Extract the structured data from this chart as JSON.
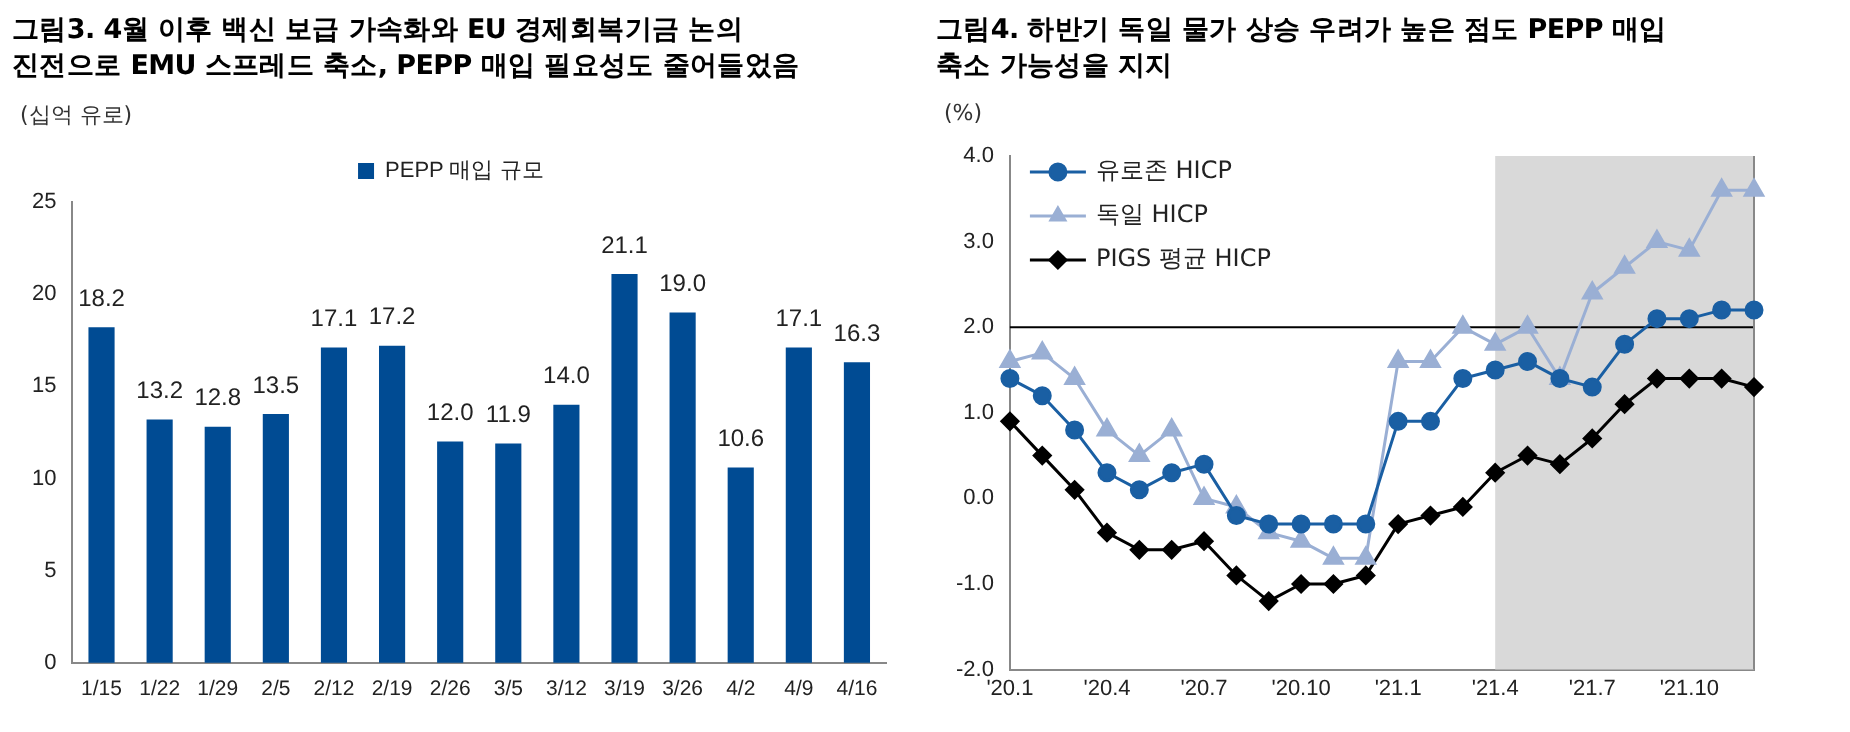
{
  "chart_data": [
    {
      "type": "bar",
      "title": "그림3. 4월 이후 백신 보급 가속화와 EU 경제회복기금 논의\n진전으로 EMU 스프레드 축소, PEPP 매입 필요성도 줄어들었음",
      "ylabel": "(십억 유로)",
      "categories": [
        "1/15",
        "1/22",
        "1/29",
        "2/5",
        "2/12",
        "2/19",
        "2/26",
        "3/5",
        "3/12",
        "3/19",
        "3/26",
        "4/2",
        "4/9",
        "4/16"
      ],
      "series": [
        {
          "name": "PEPP 매입 규모",
          "color": "#004b93",
          "values": [
            18.2,
            13.2,
            12.8,
            13.5,
            17.1,
            17.2,
            12.0,
            11.9,
            14.0,
            21.1,
            19.0,
            10.6,
            17.1,
            16.3
          ]
        }
      ],
      "value_labels": [
        "18.2",
        "13.2",
        "12.8",
        "13.5",
        "17.1",
        "17.2",
        "12.0",
        "11.9",
        "14.0",
        "21.1",
        "19.0",
        "10.6",
        "17.1",
        "16.3"
      ],
      "ylim": [
        0,
        25
      ],
      "yticks": [
        0,
        5,
        10,
        15,
        20,
        25
      ],
      "grid": false,
      "legend": "top"
    },
    {
      "type": "line",
      "title": "그림4. 하반기 독일 물가 상승 우려가 높은 점도 PEPP 매입\n축소 가능성을 지지",
      "ylabel": "(%)",
      "x": [
        "2020-01",
        "2020-02",
        "2020-03",
        "2020-04",
        "2020-05",
        "2020-06",
        "2020-07",
        "2020-08",
        "2020-09",
        "2020-10",
        "2020-11",
        "2020-12",
        "2021-01",
        "2021-02",
        "2021-03",
        "2021-04",
        "2021-05",
        "2021-06",
        "2021-07",
        "2021-08",
        "2021-09",
        "2021-10",
        "2021-11",
        "2021-12"
      ],
      "series": [
        {
          "name": "유로존 HICP",
          "color": "#1a5fa3",
          "marker": "circle",
          "values": [
            1.4,
            1.2,
            0.8,
            0.3,
            0.1,
            0.3,
            0.4,
            -0.2,
            -0.3,
            -0.3,
            -0.3,
            -0.3,
            0.9,
            0.9,
            1.4,
            1.5,
            1.6,
            1.4,
            1.3,
            1.8,
            2.1,
            2.1,
            2.2,
            2.2
          ]
        },
        {
          "name": "독일 HICP",
          "color": "#9aafd4",
          "marker": "triangle",
          "values": [
            1.6,
            1.7,
            1.4,
            0.8,
            0.5,
            0.8,
            0.0,
            -0.1,
            -0.4,
            -0.5,
            -0.7,
            -0.7,
            1.6,
            1.6,
            2.0,
            1.8,
            2.0,
            1.4,
            2.4,
            2.7,
            3.0,
            2.9,
            3.6,
            3.6
          ]
        },
        {
          "name": "PIGS 평균 HICP",
          "color": "#000000",
          "marker": "diamond",
          "values": [
            0.9,
            0.5,
            0.1,
            -0.4,
            -0.6,
            -0.6,
            -0.5,
            -0.9,
            -1.2,
            -1.0,
            -1.0,
            -0.9,
            -0.3,
            -0.2,
            -0.1,
            0.3,
            0.5,
            0.4,
            0.7,
            1.1,
            1.4,
            1.4,
            1.4,
            1.3
          ]
        }
      ],
      "xlim": [
        "2020-01",
        "2021-12"
      ],
      "xticks": [
        {
          "value": "2020-01",
          "label": "'20.1"
        },
        {
          "value": "2020-04",
          "label": "'20.4"
        },
        {
          "value": "2020-07",
          "label": "'20.7"
        },
        {
          "value": "2020-10",
          "label": "'20.10"
        },
        {
          "value": "2021-01",
          "label": "'21.1"
        },
        {
          "value": "2021-04",
          "label": "'21.4"
        },
        {
          "value": "2021-07",
          "label": "'21.7"
        },
        {
          "value": "2021-10",
          "label": "'21.10"
        }
      ],
      "ylim": [
        -2,
        4
      ],
      "yticks": [
        {
          "value": -2,
          "label": "-2.0"
        },
        {
          "value": -1,
          "label": "-1.0"
        },
        {
          "value": 0,
          "label": "0.0"
        },
        {
          "value": 1,
          "label": "1.0"
        },
        {
          "value": 2,
          "label": "2.0"
        },
        {
          "value": 3,
          "label": "3.0"
        },
        {
          "value": 4,
          "label": "4.0"
        }
      ],
      "ref_lines": [
        {
          "axis": "y",
          "value": 2,
          "color": "#000000"
        }
      ],
      "bands": [
        {
          "axis": "x",
          "from": "2021-04",
          "to": "2021-12",
          "color": "#d9d9d9"
        }
      ],
      "grid": false,
      "legend": "top left"
    }
  ]
}
